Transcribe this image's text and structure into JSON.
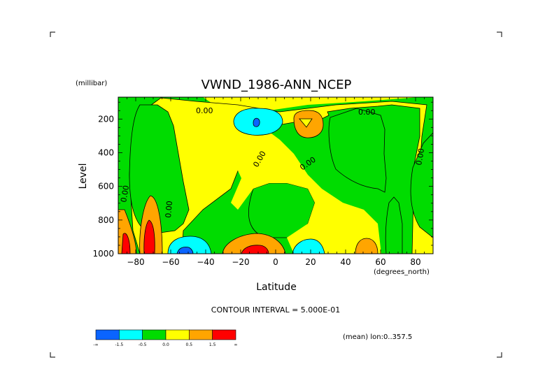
{
  "chart_data": {
    "type": "heatmap",
    "subtype": "filled-contour",
    "title": "VWND_1986-ANN_NCEP",
    "xlabel": "Latitude",
    "xunits": "(degrees_north)",
    "ylabel": "Level",
    "yunits": "(millibar)",
    "xlim": [
      -90,
      90
    ],
    "ylim": [
      1000,
      70
    ],
    "y_inverted": true,
    "x_ticks": [
      "-80",
      "-60",
      "-40",
      "-20",
      "0",
      "20",
      "40",
      "60",
      "80"
    ],
    "y_ticks": [
      "200",
      "400",
      "600",
      "800",
      "1000"
    ],
    "contour_interval_text": "CONTOUR INTERVAL = 5.000E-01",
    "averaging_text": "(mean) lon:0..357.5",
    "contour_labels": [
      "0.00",
      "0.00",
      "0.00",
      "0.00",
      "0.00",
      "0.00",
      "0.00",
      "0.00"
    ],
    "colorbar": {
      "colors": [
        "#0a64ff",
        "#00ffff",
        "#00dc00",
        "#ffff00",
        "#ffa500",
        "#ff0000"
      ],
      "labels": [
        "-∞",
        "-1.5",
        "-0.5",
        "0.0",
        "0.5",
        "1.5",
        "∞"
      ]
    },
    "grid": false,
    "legend_placement": "bottom-left"
  }
}
